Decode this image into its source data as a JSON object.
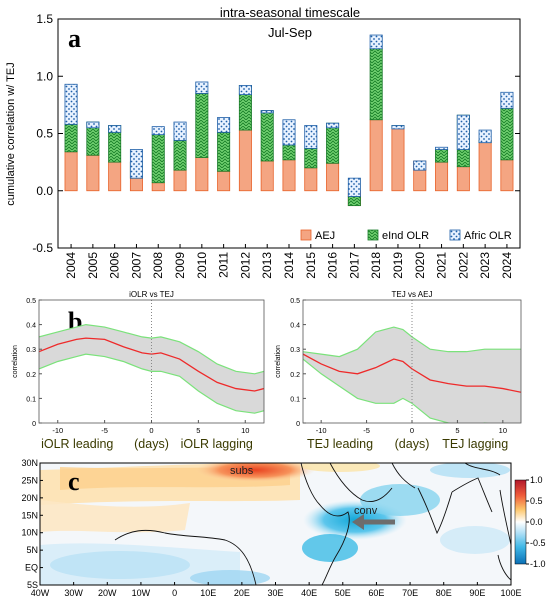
{
  "colors": {
    "aej": "#f4a582",
    "aej_stroke": "#e8622a",
    "eind": "#39b54a",
    "eind_stroke": "#1a7a2a",
    "afric": "#4f9ddf",
    "afric_stroke": "#1f5fa8",
    "band": "#d9d9d9",
    "band_edge": "#7be27b",
    "mean_line": "#ee2a2a"
  },
  "panel_a": {
    "letter": "a",
    "title": "intra-seasonal timescale",
    "season": "Jul-Sep",
    "chart_data": {
      "type": "bar",
      "stacked": true,
      "ylabel": "cumulative correlation w/ TEJ",
      "ylim": [
        -0.5,
        1.5
      ],
      "yticks": [
        -0.5,
        0.0,
        0.5,
        1.0,
        1.5
      ],
      "ytick_labels": [
        "-0.5",
        "0.0",
        "0.5",
        "1.0",
        "1.5"
      ],
      "categories": [
        "2004",
        "2005",
        "2006",
        "2007",
        "2008",
        "2009",
        "2010",
        "2011",
        "2012",
        "2013",
        "2014",
        "2015",
        "2016",
        "2017",
        "2018",
        "2019",
        "2020",
        "2021",
        "2022",
        "2023",
        "2024"
      ],
      "series": [
        {
          "name": "AEJ",
          "values": [
            0.34,
            0.31,
            0.25,
            0.25,
            0.07,
            0.18,
            0.29,
            0.17,
            0.53,
            0.26,
            0.27,
            0.2,
            0.24,
            -0.13,
            0.62,
            0.55,
            0.26,
            0.25,
            0.21,
            0.44,
            0.27
          ]
        },
        {
          "name": "eInd OLR",
          "values": [
            0.24,
            0.29,
            0.32,
            -0.14,
            0.42,
            0.26,
            0.56,
            0.34,
            0.39,
            0.44,
            0.13,
            0.17,
            0.35,
            0.08,
            0.62,
            0.02,
            0,
            0.11,
            0.45,
            -0.02,
            0.45
          ]
        },
        {
          "name": "Afric OLR",
          "values": [
            0.35,
            -0.05,
            -0.06,
            0.25,
            0.07,
            0.16,
            0.1,
            0.13,
            -0.08,
            -0.02,
            0.22,
            0.2,
            -0.04,
            0.16,
            0.12,
            -0.03,
            -0.08,
            0.02,
            -0.3,
            0.11,
            0.14
          ]
        }
      ],
      "legend_position": "bottom-right",
      "grid": false
    }
  },
  "panel_b": {
    "letter": "b",
    "charts": [
      {
        "type": "line",
        "title": "iOLR vs TEJ",
        "ylabel": "correlation",
        "xlim": [
          -12,
          12
        ],
        "ylim": [
          0,
          0.5
        ],
        "xticks": [
          -10,
          -5,
          0,
          5,
          10
        ],
        "xtick_labels": [
          "-10",
          "-5",
          "0",
          "5",
          "10"
        ],
        "yticks": [
          0,
          0.1,
          0.2,
          0.3,
          0.4,
          0.5
        ],
        "ytick_labels": [
          "0",
          "0.1",
          "0.2",
          "0.3",
          "0.4",
          "0.5"
        ],
        "x": [
          -12,
          -10,
          -8,
          -7,
          -5,
          -3,
          -1,
          0,
          1,
          3,
          5,
          7,
          9,
          11,
          12
        ],
        "mean": [
          0.29,
          0.32,
          0.34,
          0.345,
          0.34,
          0.31,
          0.285,
          0.28,
          0.285,
          0.26,
          0.21,
          0.165,
          0.14,
          0.13,
          0.14
        ],
        "upper": [
          0.35,
          0.37,
          0.39,
          0.4,
          0.39,
          0.37,
          0.35,
          0.345,
          0.35,
          0.33,
          0.29,
          0.24,
          0.21,
          0.2,
          0.21
        ],
        "lower": [
          0.22,
          0.25,
          0.27,
          0.28,
          0.27,
          0.25,
          0.22,
          0.21,
          0.21,
          0.19,
          0.13,
          0.08,
          0.05,
          0.04,
          0.05
        ],
        "bottom_labels": [
          "iOLR leading",
          "(days)",
          "iOLR lagging"
        ]
      },
      {
        "type": "line",
        "title": "TEJ vs AEJ",
        "ylabel": "correlation",
        "xlim": [
          -12,
          12
        ],
        "ylim": [
          0,
          0.5
        ],
        "xticks": [
          -10,
          -5,
          0,
          5,
          10
        ],
        "xtick_labels": [
          "-10",
          "-5",
          "0",
          "5",
          "10"
        ],
        "yticks": [
          0,
          0.1,
          0.2,
          0.3,
          0.4,
          0.5
        ],
        "ytick_labels": [
          "0",
          "0.1",
          "0.2",
          "0.3",
          "0.4",
          "0.5"
        ],
        "x": [
          -12,
          -10,
          -8,
          -6,
          -4,
          -2,
          -1,
          0,
          2,
          4,
          6,
          8,
          10,
          12
        ],
        "mean": [
          0.28,
          0.24,
          0.21,
          0.2,
          0.225,
          0.26,
          0.25,
          0.22,
          0.175,
          0.16,
          0.15,
          0.15,
          0.14,
          0.125
        ],
        "upper": [
          0.29,
          0.28,
          0.27,
          0.3,
          0.37,
          0.39,
          0.38,
          0.35,
          0.3,
          0.29,
          0.29,
          0.3,
          0.3,
          0.3
        ],
        "lower": [
          0.26,
          0.2,
          0.15,
          0.1,
          0.08,
          0.08,
          0.1,
          0.08,
          0.02,
          0.0,
          -0.02,
          0.0,
          -0.01,
          -0.05
        ],
        "bottom_labels": [
          "TEJ leading",
          "(days)",
          "TEJ lagging"
        ]
      }
    ]
  },
  "panel_c": {
    "letter": "c",
    "chart_data": {
      "type": "heatmap",
      "xlim": [
        -40,
        100
      ],
      "ylim": [
        -5,
        30
      ],
      "xtick_labels": [
        "40W",
        "30W",
        "20W",
        "10W",
        "0",
        "10E",
        "20E",
        "30E",
        "40E",
        "50E",
        "60E",
        "70E",
        "80E",
        "90E",
        "100E"
      ],
      "ytick_labels": [
        "5S",
        "EQ",
        "5N",
        "10N",
        "15N",
        "20N",
        "25N",
        "30N"
      ],
      "colorbar_ticks": [
        1.0,
        0.5,
        0.0,
        -0.5,
        -1.0
      ],
      "colorbar_labels": [
        "1.0",
        "0.5",
        "0.0",
        "-0.5",
        "-1.0"
      ],
      "annotations": [
        "subs",
        "conv"
      ]
    }
  }
}
